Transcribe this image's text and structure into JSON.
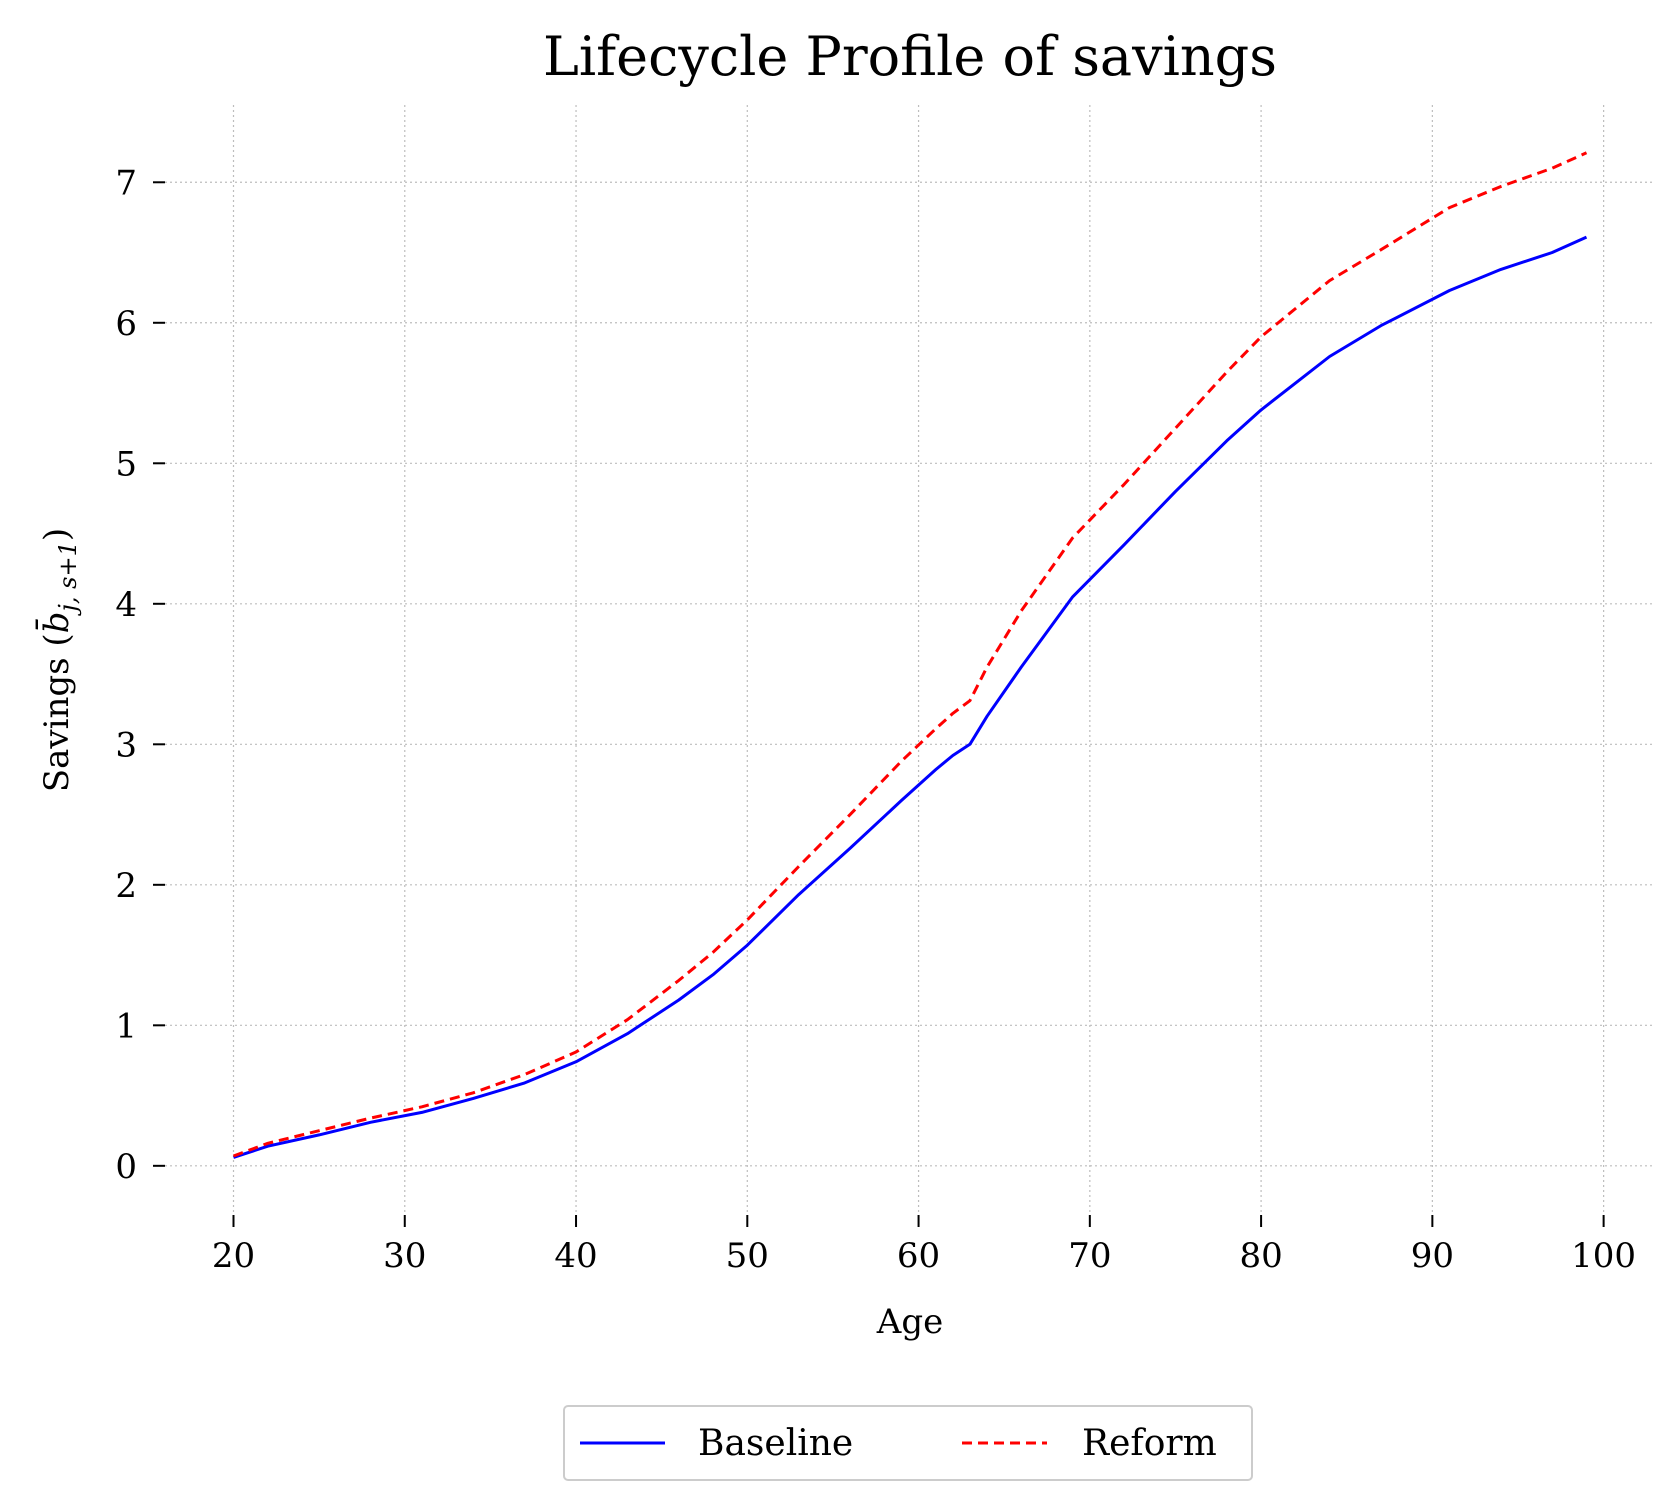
{
  "chart_data": {
    "type": "line",
    "title": "Lifecycle Profile of savings",
    "xlabel": "Age",
    "ylabel_main": "Savings (",
    "ylabel_b": "b̄",
    "ylabel_sub": "j, s+1",
    "ylabel_close": ")",
    "xlim": [
      16,
      103
    ],
    "ylim": [
      -0.35,
      7.55
    ],
    "xticks": [
      20,
      30,
      40,
      50,
      60,
      70,
      80,
      90,
      100
    ],
    "yticks": [
      0,
      1,
      2,
      3,
      4,
      5,
      6,
      7
    ],
    "grid": true,
    "legend_position": "bottom-center",
    "series": [
      {
        "name": "Baseline",
        "color": "#0000ff",
        "style": "solid",
        "x": [
          20,
          22,
          25,
          28,
          31,
          34,
          37,
          40,
          43,
          46,
          48,
          50,
          53,
          56,
          59,
          61,
          62,
          63,
          64,
          66,
          69,
          72,
          75,
          78,
          80,
          84,
          87,
          91,
          94,
          97,
          99
        ],
        "y": [
          0.06,
          0.14,
          0.22,
          0.31,
          0.38,
          0.48,
          0.59,
          0.74,
          0.94,
          1.18,
          1.36,
          1.57,
          1.93,
          2.26,
          2.6,
          2.82,
          2.92,
          3.0,
          3.2,
          3.55,
          4.05,
          4.42,
          4.8,
          5.16,
          5.38,
          5.76,
          5.98,
          6.23,
          6.38,
          6.5,
          6.61
        ]
      },
      {
        "name": "Reform",
        "color": "#ff0000",
        "style": "dashed",
        "x": [
          20,
          22,
          25,
          28,
          31,
          34,
          37,
          40,
          43,
          46,
          48,
          50,
          53,
          56,
          59,
          61,
          62,
          63,
          64,
          66,
          69,
          72,
          75,
          78,
          80,
          84,
          87,
          91,
          94,
          97,
          99
        ],
        "y": [
          0.07,
          0.16,
          0.25,
          0.34,
          0.42,
          0.52,
          0.65,
          0.81,
          1.04,
          1.32,
          1.52,
          1.75,
          2.13,
          2.5,
          2.88,
          3.11,
          3.22,
          3.31,
          3.55,
          3.95,
          4.47,
          4.85,
          5.25,
          5.65,
          5.9,
          6.3,
          6.52,
          6.82,
          6.97,
          7.1,
          7.21
        ]
      }
    ]
  }
}
